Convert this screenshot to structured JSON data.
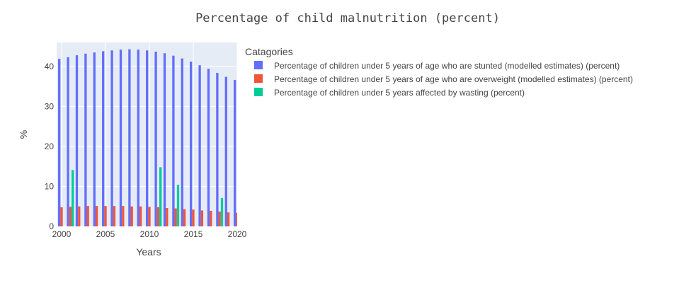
{
  "chart_data": {
    "type": "bar",
    "title": "Percentage of child malnutrition (percent)",
    "xlabel": "Years",
    "ylabel": "%",
    "xlim": [
      2000,
      2020
    ],
    "ylim": [
      0,
      46
    ],
    "xticks": [
      2000,
      2005,
      2010,
      2015,
      2020
    ],
    "yticks": [
      0,
      10,
      20,
      30,
      40
    ],
    "grid": true,
    "legend_title": "Catagories",
    "legend_position": "right",
    "x": [
      2000,
      2001,
      2002,
      2003,
      2004,
      2005,
      2006,
      2007,
      2008,
      2009,
      2010,
      2011,
      2012,
      2013,
      2014,
      2015,
      2016,
      2017,
      2018,
      2019,
      2020
    ],
    "series": [
      {
        "name": "Percentage of children under 5 years of age who are stunted (modelled estimates) (percent)",
        "color": "#636efa",
        "values": [
          41.9,
          42.3,
          42.8,
          43.2,
          43.5,
          43.8,
          44.0,
          44.2,
          44.3,
          44.2,
          44.0,
          43.7,
          43.3,
          42.7,
          42.0,
          41.2,
          40.3,
          39.4,
          38.4,
          37.4,
          36.6
        ]
      },
      {
        "name": "Percentage of children under 5 years of age who are overweight (modelled estimates) (percent)",
        "color": "#ef553b",
        "values": [
          4.8,
          4.9,
          5.0,
          5.1,
          5.1,
          5.1,
          5.1,
          5.1,
          5.0,
          5.0,
          4.9,
          4.8,
          4.6,
          4.5,
          4.3,
          4.2,
          4.0,
          3.9,
          3.7,
          3.5,
          3.4
        ]
      },
      {
        "name": "Percentage of children under 5 years affected by wasting (percent)",
        "color": "#00cc96",
        "values": [
          null,
          14.1,
          null,
          null,
          null,
          null,
          null,
          null,
          null,
          null,
          null,
          14.8,
          null,
          10.4,
          null,
          null,
          null,
          null,
          7.1,
          null,
          null
        ]
      }
    ]
  }
}
